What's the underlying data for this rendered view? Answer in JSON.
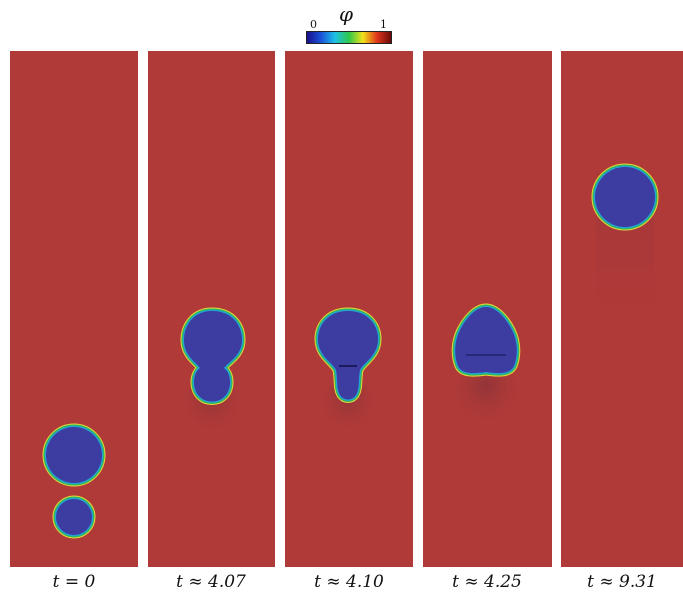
{
  "colorbar": {
    "title": "φ",
    "min_label": "0",
    "max_label": "1",
    "colors": [
      "#1a0f8c",
      "#1b52d8",
      "#1ec0e6",
      "#2fc84a",
      "#f2e21a",
      "#e0351b",
      "#6b0a0a"
    ]
  },
  "colors": {
    "background_phase": "#b03a38",
    "bubble_phase": "#3d3ca0",
    "interface_outer": "#e8d53a",
    "interface_mid": "#2fb85a",
    "interface_inner": "#21a3d6"
  },
  "panels": [
    {
      "label": "t = 0"
    },
    {
      "label": "t ≈ 4.07"
    },
    {
      "label": "t ≈ 4.10"
    },
    {
      "label": "t ≈ 4.25"
    },
    {
      "label": "t ≈ 9.31"
    }
  ]
}
